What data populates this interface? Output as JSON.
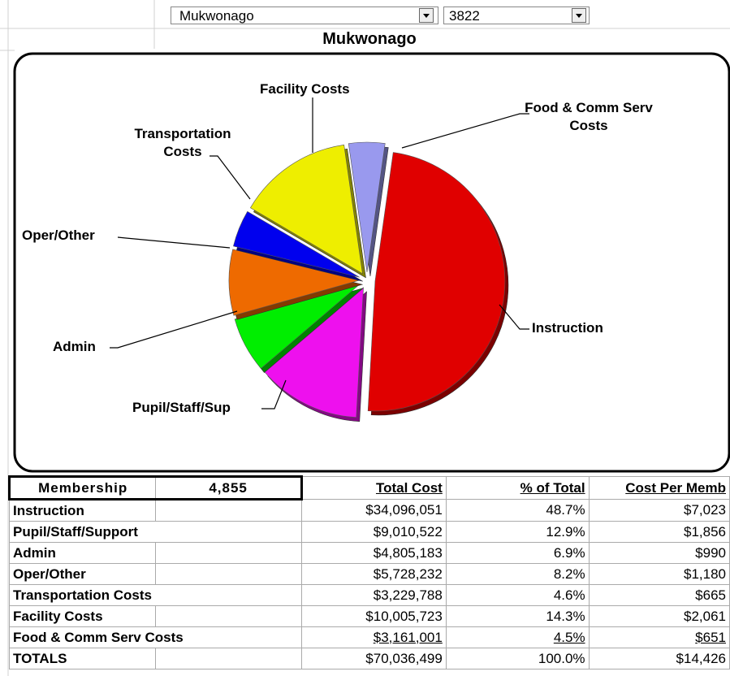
{
  "dropdowns": [
    "Mukwonago",
    "3822"
  ],
  "chart_data": {
    "type": "pie",
    "title": "Mukwonago",
    "categories": [
      "Instruction",
      "Pupil/Staff/Sup",
      "Admin",
      "Oper/Other",
      "Transportation Costs",
      "Facility Costs",
      "Food & Comm Serv Costs"
    ],
    "values": [
      48.7,
      12.9,
      6.9,
      8.2,
      4.6,
      14.3,
      4.5
    ],
    "colors": [
      "#e00000",
      "#ee10ee",
      "#00ee00",
      "#ee6a00",
      "#0000ee",
      "#eeee00",
      "#9999ee"
    ]
  },
  "table": {
    "header": [
      "Membership",
      "4,855",
      "Total Cost",
      "% of Total",
      "Cost Per Memb"
    ],
    "rows": [
      [
        "Instruction",
        "$34,096,051",
        "48.7%",
        "$7,023"
      ],
      [
        "Pupil/Staff/Support",
        "$9,010,522",
        "12.9%",
        "$1,856"
      ],
      [
        "Admin",
        "$4,805,183",
        "6.9%",
        "$990"
      ],
      [
        "Oper/Other",
        "$5,728,232",
        "8.2%",
        "$1,180"
      ],
      [
        "Transportation Costs",
        "$3,229,788",
        "4.6%",
        "$665"
      ],
      [
        "Facility Costs",
        "$10,005,723",
        "14.3%",
        "$2,061"
      ],
      [
        "Food & Comm Serv Costs",
        "$3,161,001",
        "4.5%",
        "$651"
      ],
      [
        "TOTALS",
        "$70,036,499",
        "100.0%",
        "$14,426"
      ]
    ]
  }
}
